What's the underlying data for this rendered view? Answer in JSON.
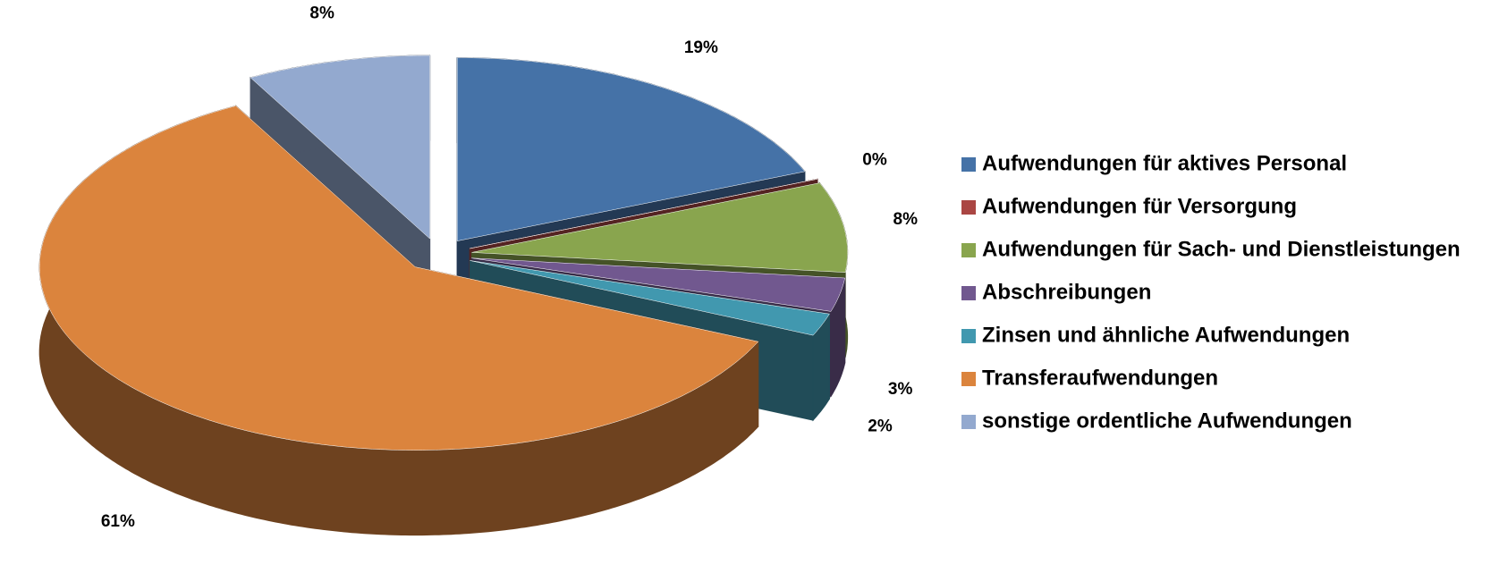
{
  "chart_data": {
    "type": "pie",
    "categories": [
      "Aufwendungen für aktives Personal",
      "Aufwendungen für Versorgung",
      "Aufwendungen für Sach- und Dienstleistungen",
      "Abschreibungen",
      "Zinsen und ähnliche Aufwendungen",
      "Transferaufwendungen",
      "sonstige ordentliche Aufwendungen"
    ],
    "values": [
      19,
      0,
      8,
      3,
      2,
      61,
      8
    ],
    "value_labels": [
      "19%",
      "0%",
      "8%",
      "3%",
      "2%",
      "61%",
      "8%"
    ],
    "colors": [
      "#4572a7",
      "#aa4643",
      "#89a54e",
      "#71588f",
      "#4198af",
      "#db843d",
      "#93a9cf"
    ],
    "legend": "right"
  }
}
